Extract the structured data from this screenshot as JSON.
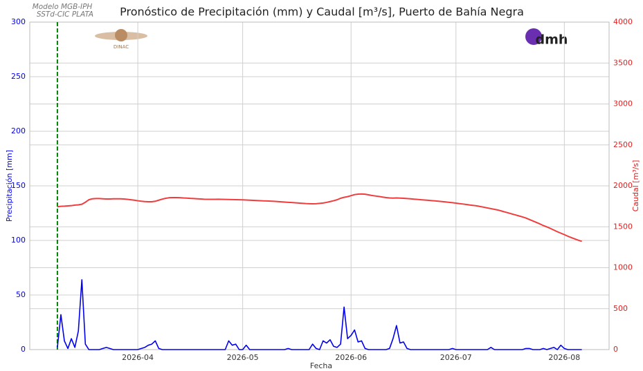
{
  "chart_data": {
    "type": "line",
    "title": "Pronóstico de Precipitación (mm) y Caudal [m³/s], Puerto de Bahía Negra",
    "annotations": [
      "Modelo MGB-IPH",
      "SSTd-CIC PLATA"
    ],
    "logos": [
      "DINAC",
      "dmh"
    ],
    "xlabel": "Fecha",
    "ylabel": "Precipitación [mm]",
    "y2label": "Caudal [m³/s]",
    "xlim": [
      -7.9,
      157.8
    ],
    "xticks": [
      {
        "value": 23,
        "label": "2026-04"
      },
      {
        "value": 53,
        "label": "2026-05"
      },
      {
        "value": 84,
        "label": "2026-06"
      },
      {
        "value": 114,
        "label": "2026-07"
      },
      {
        "value": 145,
        "label": "2026-08"
      }
    ],
    "ylim": [
      0,
      300
    ],
    "yticks": [
      0,
      50,
      100,
      150,
      200,
      250,
      300
    ],
    "y2lim": [
      0,
      4000
    ],
    "y2ticks": [
      0,
      500,
      1000,
      1500,
      2000,
      2500,
      3000,
      3500,
      4000
    ],
    "grid": true,
    "vline": {
      "x": 0,
      "color": "#008000"
    },
    "series": [
      {
        "color": "#0000ee",
        "values": [
          2,
          32,
          8,
          1,
          10,
          2,
          17,
          64,
          5,
          0,
          0,
          0,
          0,
          1,
          2,
          1,
          0,
          0,
          0,
          0,
          0,
          0,
          0,
          0,
          1,
          2,
          4,
          5,
          8,
          1,
          0,
          0,
          0,
          0,
          0,
          0,
          0,
          0,
          0,
          0,
          0,
          0,
          0,
          0,
          0,
          0,
          0,
          0,
          0,
          8,
          4,
          5,
          0,
          0,
          4,
          0,
          0,
          0,
          0,
          0,
          0,
          0,
          0,
          0,
          0,
          0,
          1,
          0,
          0,
          0,
          0,
          0,
          0,
          5,
          1,
          0,
          8,
          6,
          9,
          3,
          2,
          5,
          39,
          10,
          13,
          18,
          7,
          8,
          1,
          0,
          0,
          0,
          0,
          0,
          0,
          1,
          10,
          22,
          6,
          7,
          1,
          0,
          0,
          0,
          0,
          0,
          0,
          0,
          0,
          0,
          0,
          0,
          0,
          1,
          0,
          0,
          0,
          0,
          0,
          0,
          0,
          0,
          0,
          0,
          2,
          0,
          0,
          0,
          0,
          0,
          0,
          0,
          0,
          0,
          1,
          1,
          0,
          0,
          0,
          1,
          0,
          1,
          2,
          0,
          4,
          1,
          0,
          0,
          0,
          0,
          0
        ]
      },
      {
        "color": "#f03c3c",
        "axis": "y2",
        "values": [
          1745,
          1750,
          1752,
          1755,
          1758,
          1765,
          1768,
          1775,
          1800,
          1830,
          1842,
          1845,
          1845,
          1842,
          1840,
          1840,
          1842,
          1842,
          1842,
          1840,
          1835,
          1830,
          1825,
          1818,
          1812,
          1808,
          1806,
          1806,
          1812,
          1825,
          1838,
          1848,
          1855,
          1857,
          1857,
          1855,
          1852,
          1850,
          1847,
          1845,
          1842,
          1840,
          1837,
          1835,
          1835,
          1835,
          1836,
          1835,
          1834,
          1833,
          1832,
          1831,
          1830,
          1829,
          1827,
          1825,
          1823,
          1821,
          1819,
          1817,
          1815,
          1813,
          1811,
          1808,
          1805,
          1802,
          1799,
          1796,
          1793,
          1790,
          1787,
          1784,
          1782,
          1781,
          1782,
          1786,
          1790,
          1798,
          1808,
          1818,
          1830,
          1848,
          1860,
          1868,
          1880,
          1893,
          1899,
          1901,
          1898,
          1890,
          1882,
          1876,
          1870,
          1863,
          1857,
          1852,
          1850,
          1852,
          1850,
          1848,
          1845,
          1842,
          1838,
          1834,
          1830,
          1827,
          1824,
          1820,
          1816,
          1812,
          1808,
          1804,
          1799,
          1794,
          1789,
          1783,
          1778,
          1772,
          1766,
          1761,
          1755,
          1747,
          1739,
          1730,
          1722,
          1713,
          1705,
          1693,
          1681,
          1669,
          1657,
          1645,
          1633,
          1621,
          1607,
          1589,
          1571,
          1553,
          1535,
          1515,
          1498,
          1480,
          1460,
          1440,
          1422,
          1404,
          1385,
          1368,
          1352,
          1336,
          1322
        ]
      }
    ]
  }
}
